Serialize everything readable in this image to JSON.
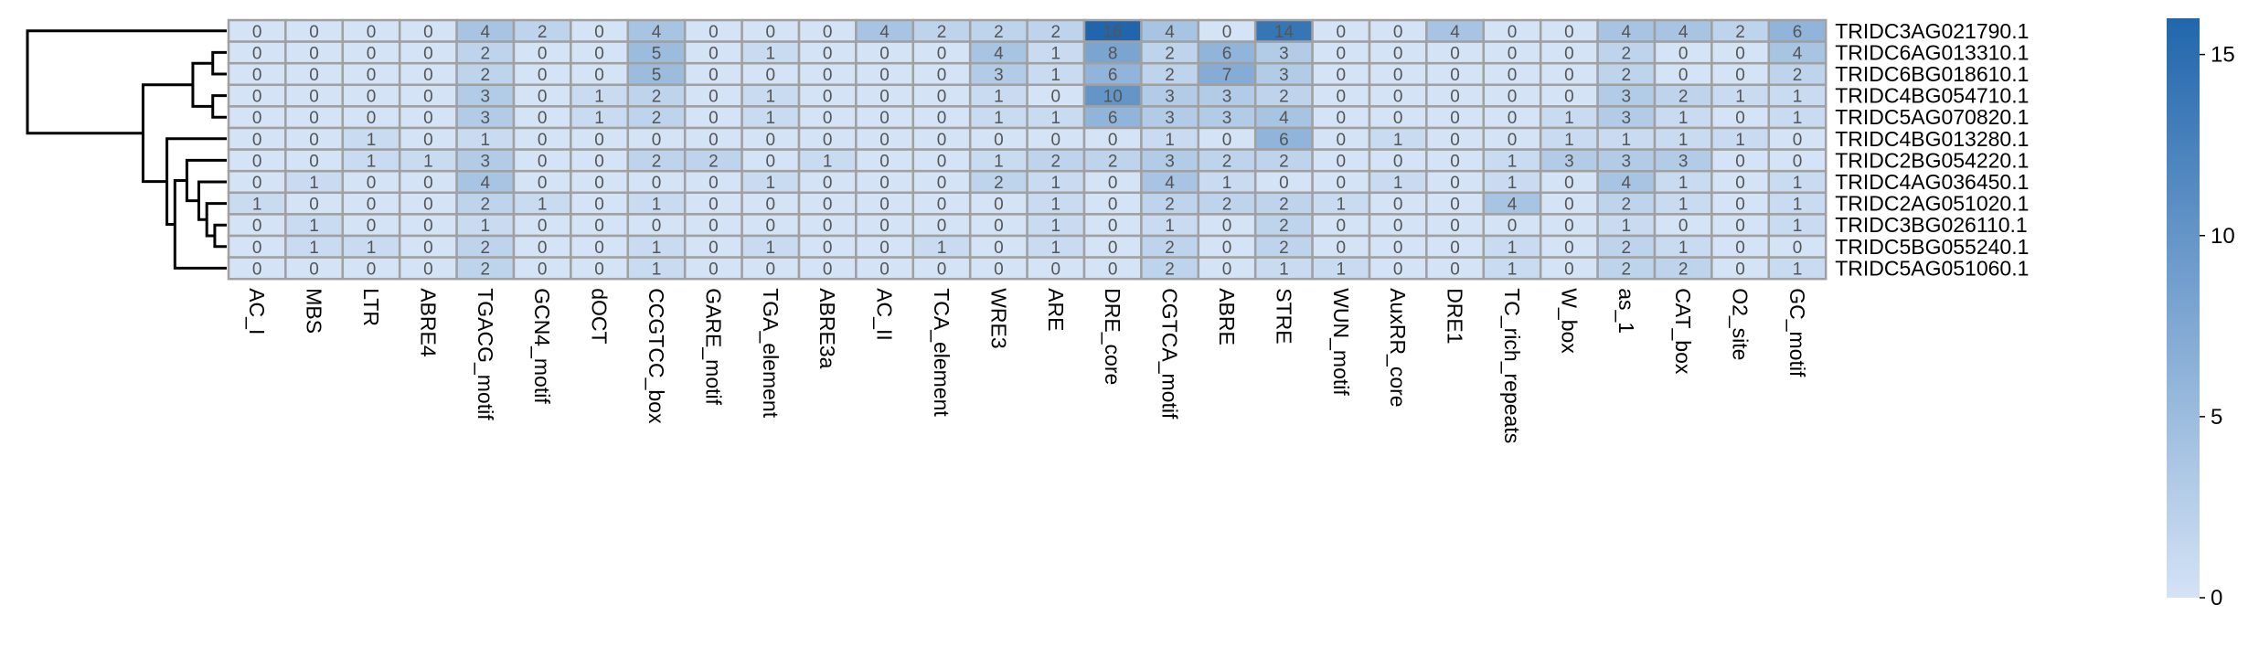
{
  "chart_data": {
    "type": "heatmap",
    "title": "",
    "x_labels": [
      "AC_I",
      "MBS",
      "LTR",
      "ABRE4",
      "TGACG_motif",
      "GCN4_motif",
      "dOCT",
      "CCGTCC_box",
      "GARE_motif",
      "TGA_element",
      "ABRE3a",
      "AC_II",
      "TCA_element",
      "WRE3",
      "ARE",
      "DRE_core",
      "CGTCA_motif",
      "ABRE",
      "STRE",
      "WUN_motif",
      "AuxRR_core",
      "DRE1",
      "TC_rich_repeats",
      "W_box",
      "as_1",
      "CAT_box",
      "O2_site",
      "GC_motif"
    ],
    "y_labels": [
      "TRIDC3AG021790.1",
      "TRIDC6AG013310.1",
      "TRIDC6BG018610.1",
      "TRIDC4BG054710.1",
      "TRIDC5AG070820.1",
      "TRIDC4BG013280.1",
      "TRIDC2BG054220.1",
      "TRIDC4AG036450.1",
      "TRIDC2AG051020.1",
      "TRIDC3BG026110.1",
      "TRIDC5BG055240.1",
      "TRIDC5AG051060.1"
    ],
    "values": [
      [
        0,
        0,
        0,
        0,
        4,
        2,
        0,
        4,
        0,
        0,
        0,
        4,
        2,
        2,
        2,
        16,
        4,
        0,
        14,
        0,
        0,
        4,
        0,
        0,
        4,
        4,
        2,
        6
      ],
      [
        0,
        0,
        0,
        0,
        2,
        0,
        0,
        5,
        0,
        1,
        0,
        0,
        0,
        4,
        1,
        8,
        2,
        6,
        3,
        0,
        0,
        0,
        0,
        0,
        2,
        0,
        0,
        4
      ],
      [
        0,
        0,
        0,
        0,
        2,
        0,
        0,
        5,
        0,
        0,
        0,
        0,
        0,
        3,
        1,
        6,
        2,
        7,
        3,
        0,
        0,
        0,
        0,
        0,
        2,
        0,
        0,
        2
      ],
      [
        0,
        0,
        0,
        0,
        3,
        0,
        1,
        2,
        0,
        1,
        0,
        0,
        0,
        1,
        0,
        10,
        3,
        3,
        2,
        0,
        0,
        0,
        0,
        0,
        3,
        2,
        1,
        1
      ],
      [
        0,
        0,
        0,
        0,
        3,
        0,
        1,
        2,
        0,
        1,
        0,
        0,
        0,
        1,
        1,
        6,
        3,
        3,
        4,
        0,
        0,
        0,
        0,
        1,
        3,
        1,
        0,
        1
      ],
      [
        0,
        0,
        1,
        0,
        1,
        0,
        0,
        0,
        0,
        0,
        0,
        0,
        0,
        0,
        0,
        0,
        1,
        0,
        6,
        0,
        1,
        0,
        0,
        1,
        1,
        1,
        1,
        0
      ],
      [
        0,
        0,
        1,
        1,
        3,
        0,
        0,
        2,
        2,
        0,
        1,
        0,
        0,
        1,
        2,
        2,
        3,
        2,
        2,
        0,
        0,
        0,
        1,
        3,
        3,
        3,
        0,
        0
      ],
      [
        0,
        1,
        0,
        0,
        4,
        0,
        0,
        0,
        0,
        1,
        0,
        0,
        0,
        2,
        1,
        0,
        4,
        1,
        0,
        0,
        1,
        0,
        1,
        0,
        4,
        1,
        0,
        1
      ],
      [
        1,
        0,
        0,
        0,
        2,
        1,
        0,
        1,
        0,
        0,
        0,
        0,
        0,
        0,
        1,
        0,
        2,
        2,
        2,
        1,
        0,
        0,
        4,
        0,
        2,
        1,
        0,
        1
      ],
      [
        0,
        1,
        0,
        0,
        1,
        0,
        0,
        0,
        0,
        0,
        0,
        0,
        0,
        0,
        1,
        0,
        1,
        0,
        2,
        0,
        0,
        0,
        0,
        0,
        1,
        0,
        0,
        1
      ],
      [
        0,
        1,
        1,
        0,
        2,
        0,
        0,
        1,
        0,
        1,
        0,
        0,
        1,
        0,
        1,
        0,
        2,
        0,
        2,
        0,
        0,
        0,
        1,
        0,
        2,
        1,
        0,
        0
      ],
      [
        0,
        0,
        0,
        0,
        2,
        0,
        0,
        1,
        0,
        0,
        0,
        0,
        0,
        0,
        0,
        0,
        2,
        0,
        1,
        1,
        0,
        0,
        1,
        0,
        2,
        2,
        0,
        1
      ]
    ],
    "colorbar": {
      "min": 0,
      "max": 16,
      "ticks": [
        0,
        5,
        10,
        15
      ],
      "color_low": "#d4e3f5",
      "color_high": "#2166ac"
    },
    "row_dendrogram": true,
    "grid_color": "#a0a0a0",
    "cell_value_text_color": "#555555"
  }
}
